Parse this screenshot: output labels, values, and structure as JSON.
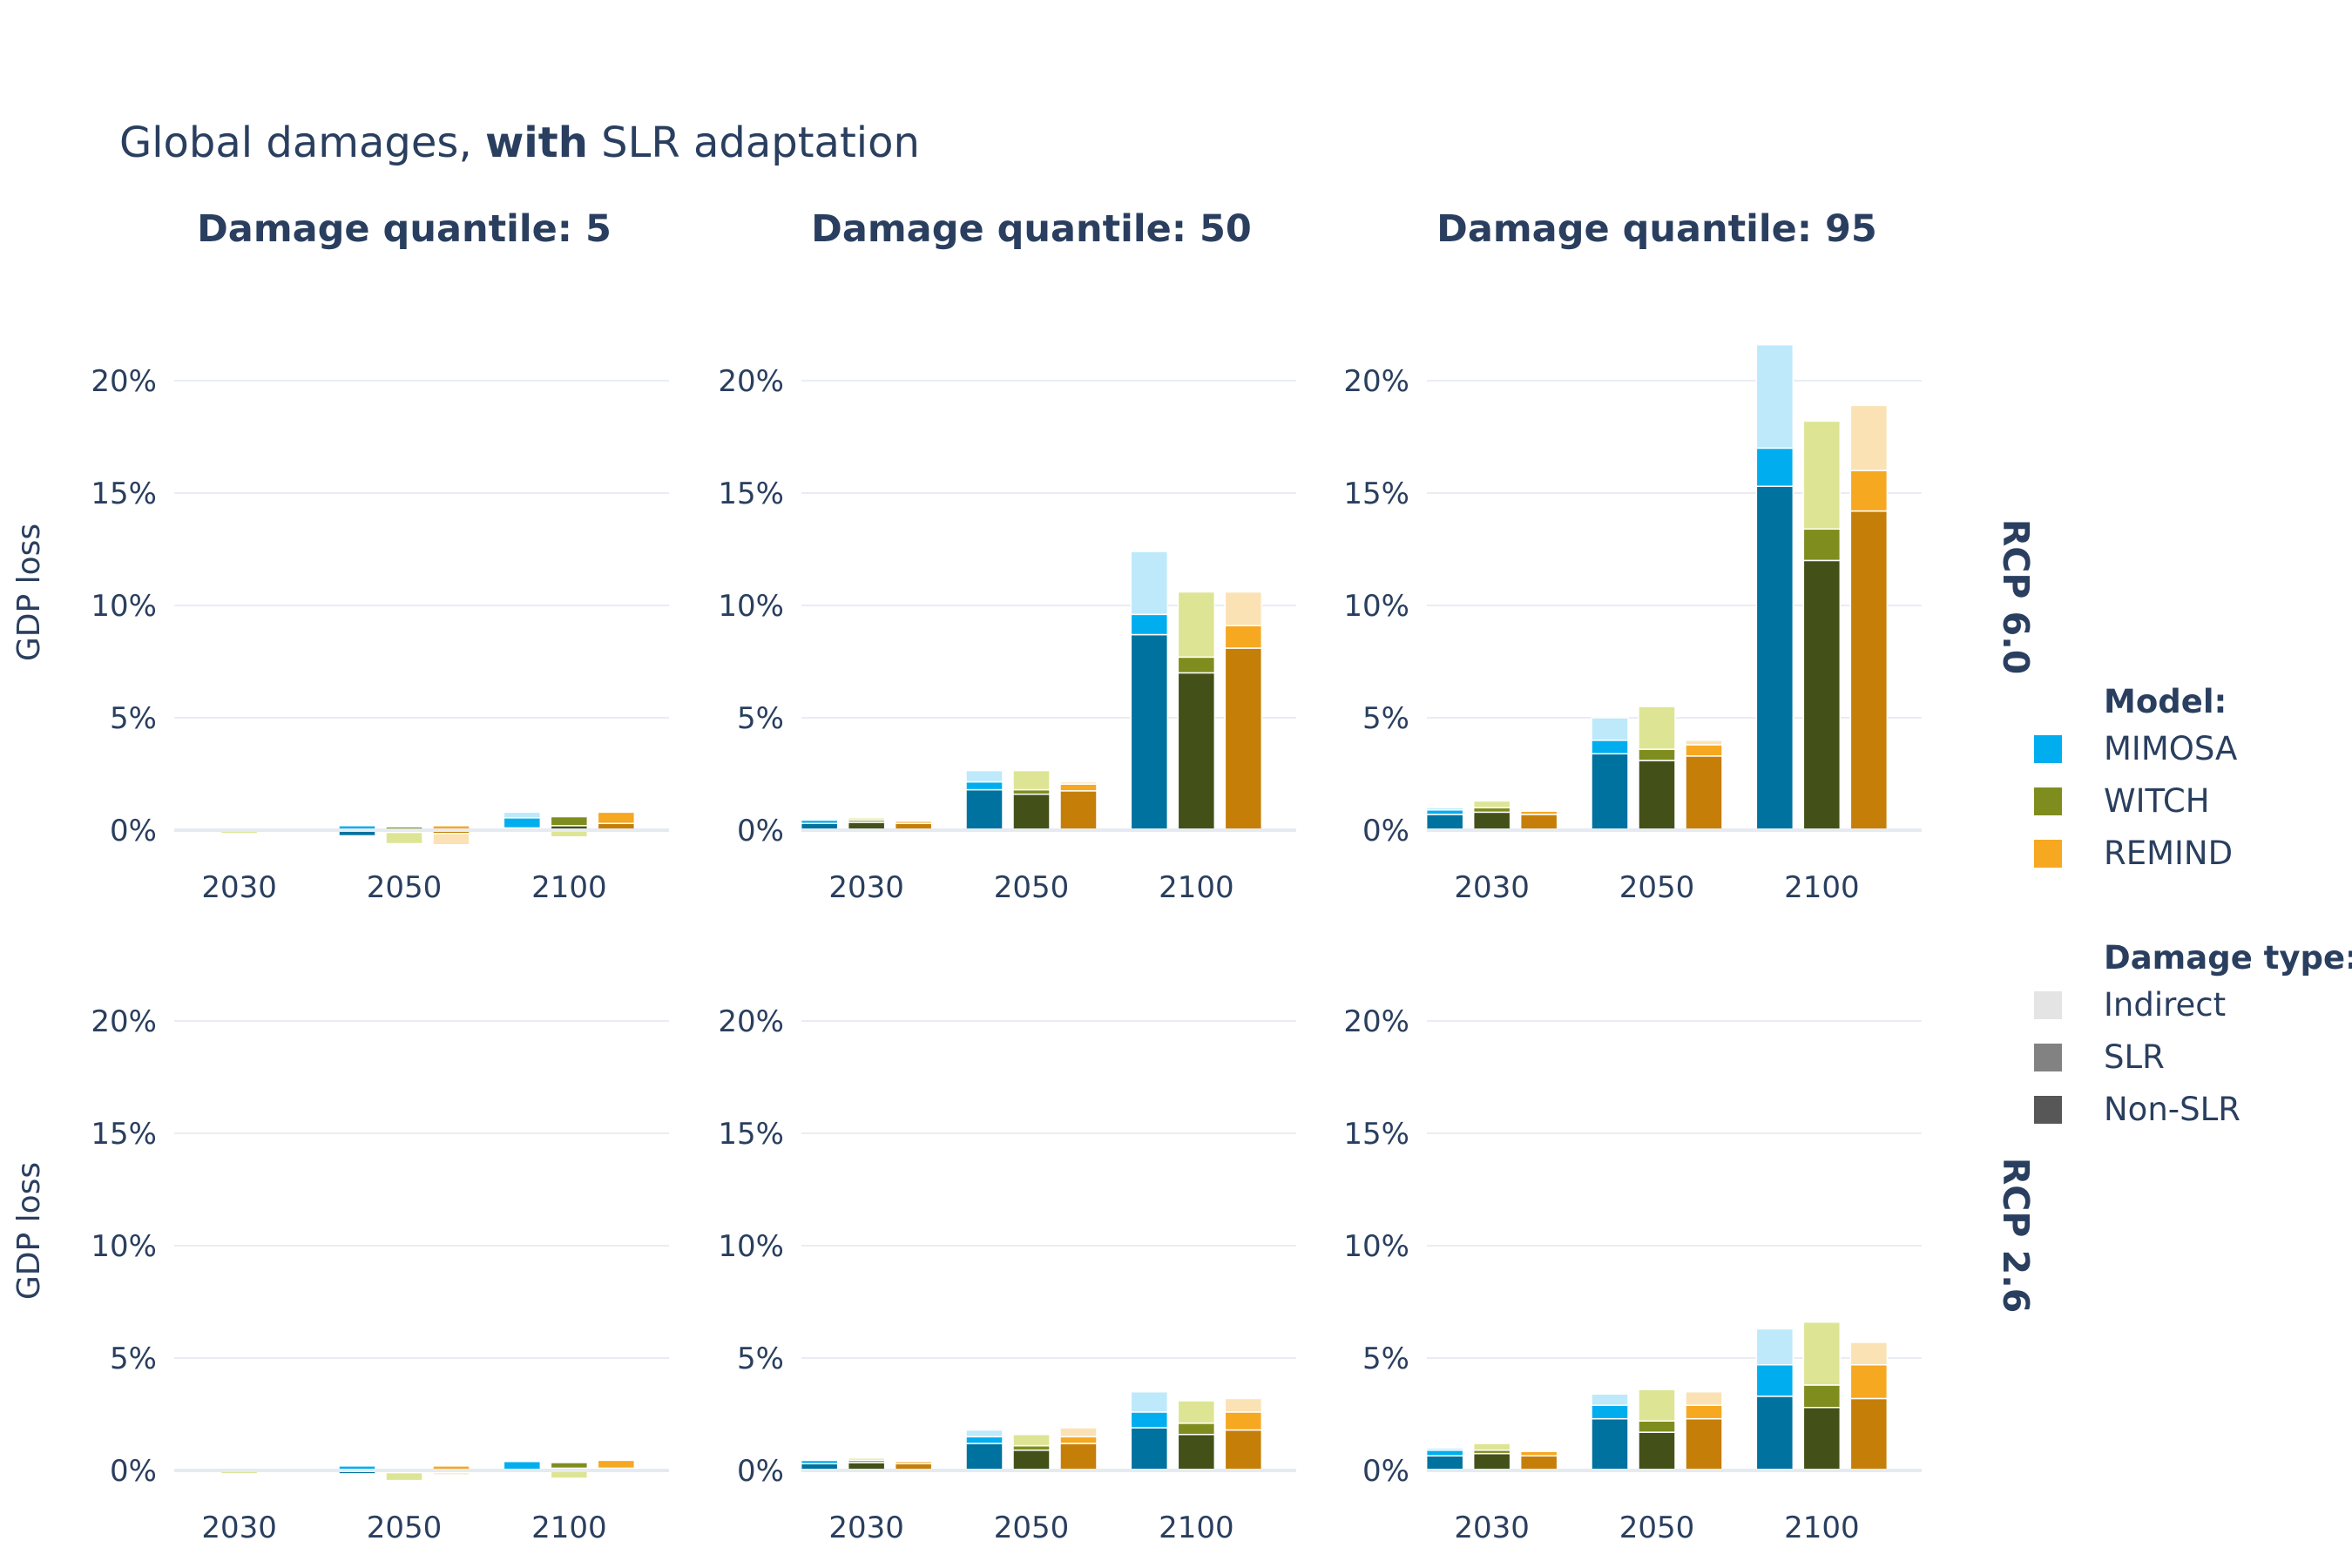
{
  "title": {
    "prefix": "Global damages, ",
    "bold": "with",
    "suffix": " SLR adaptation"
  },
  "colors": {
    "MIMOSA": {
      "indirect": "#bde9fb",
      "slr": "#00aeef",
      "nonslr": "#00729f"
    },
    "WITCH": {
      "indirect": "#dde594",
      "slr": "#7f8d1e",
      "nonslr": "#435118"
    },
    "REMIND": {
      "indirect": "#fbe2b4",
      "slr": "#f6a821",
      "nonslr": "#c57f08"
    },
    "legend_type": {
      "Indirect": "#e4e4e4",
      "SLR": "#828282",
      "Non-SLR": "#575757"
    }
  },
  "legend": {
    "model_title": "Model:",
    "models": [
      "MIMOSA",
      "WITCH",
      "REMIND"
    ],
    "type_title": "Damage type:",
    "types": [
      "Indirect",
      "SLR",
      "Non-SLR"
    ]
  },
  "chart_data": {
    "type": "bar",
    "stacking": "relative",
    "title": "Global damages, with SLR adaptation",
    "ylabel": "GDP loss",
    "ylim": [
      -1.5,
      22.5
    ],
    "yticks": [
      0,
      5,
      10,
      15,
      20
    ],
    "ytick_labels": [
      "0%",
      "5%",
      "10%",
      "15%",
      "20%"
    ],
    "categories": [
      "2030",
      "2050",
      "2100"
    ],
    "models": [
      "MIMOSA",
      "WITCH",
      "REMIND"
    ],
    "columns": [
      "Damage quantile: 5",
      "Damage quantile: 50",
      "Damage quantile: 95"
    ],
    "rows": [
      "RCP 6.0",
      "RCP 2.6"
    ],
    "units": "% of GDP",
    "panels": [
      {
        "row": "RCP 6.0",
        "column": "Damage quantile: 5",
        "values": {
          "MIMOSA": {
            "Non-SLR": [
              -0.05,
              -0.25,
              0.1
            ],
            "SLR": [
              0.02,
              0.2,
              0.45
            ],
            "Indirect": [
              0.0,
              0.0,
              0.25
            ]
          },
          "WITCH": {
            "Non-SLR": [
              -0.05,
              -0.1,
              0.2
            ],
            "SLR": [
              0.02,
              0.15,
              0.4
            ],
            "Indirect": [
              -0.1,
              -0.5,
              -0.3
            ]
          },
          "REMIND": {
            "Non-SLR": [
              -0.05,
              -0.15,
              0.3
            ],
            "SLR": [
              0.02,
              0.2,
              0.5
            ],
            "Indirect": [
              -0.05,
              -0.5,
              -0.1
            ]
          }
        }
      },
      {
        "row": "RCP 6.0",
        "column": "Damage quantile: 50",
        "values": {
          "MIMOSA": {
            "Non-SLR": [
              0.3,
              1.8,
              8.7
            ],
            "SLR": [
              0.15,
              0.35,
              0.9
            ],
            "Indirect": [
              0.05,
              0.5,
              2.8
            ]
          },
          "WITCH": {
            "Non-SLR": [
              0.35,
              1.6,
              7.0
            ],
            "SLR": [
              0.1,
              0.2,
              0.7
            ],
            "Indirect": [
              0.1,
              0.85,
              2.9
            ]
          },
          "REMIND": {
            "Non-SLR": [
              0.3,
              1.75,
              8.1
            ],
            "SLR": [
              0.1,
              0.3,
              1.0
            ],
            "Indirect": [
              0.05,
              0.1,
              1.5
            ]
          }
        }
      },
      {
        "row": "RCP 6.0",
        "column": "Damage quantile: 95",
        "values": {
          "MIMOSA": {
            "Non-SLR": [
              0.7,
              3.4,
              15.3
            ],
            "SLR": [
              0.2,
              0.6,
              1.7
            ],
            "Indirect": [
              0.1,
              1.0,
              4.6
            ]
          },
          "WITCH": {
            "Non-SLR": [
              0.8,
              3.1,
              12.0
            ],
            "SLR": [
              0.2,
              0.5,
              1.4
            ],
            "Indirect": [
              0.3,
              1.9,
              4.8
            ]
          },
          "REMIND": {
            "Non-SLR": [
              0.7,
              3.3,
              14.2
            ],
            "SLR": [
              0.15,
              0.5,
              1.8
            ],
            "Indirect": [
              0.05,
              0.2,
              2.9
            ]
          }
        }
      },
      {
        "row": "RCP 2.6",
        "column": "Damage quantile: 5",
        "values": {
          "MIMOSA": {
            "Non-SLR": [
              -0.05,
              -0.15,
              0.05
            ],
            "SLR": [
              0.02,
              0.2,
              0.35
            ],
            "Indirect": [
              0.0,
              0.0,
              0.05
            ]
          },
          "WITCH": {
            "Non-SLR": [
              -0.05,
              -0.1,
              0.1
            ],
            "SLR": [
              0.02,
              0.1,
              0.25
            ],
            "Indirect": [
              -0.1,
              -0.35,
              -0.35
            ]
          },
          "REMIND": {
            "Non-SLR": [
              -0.05,
              -0.1,
              0.1
            ],
            "SLR": [
              0.02,
              0.2,
              0.35
            ],
            "Indirect": [
              -0.05,
              -0.1,
              0.0
            ]
          }
        }
      },
      {
        "row": "RCP 2.6",
        "column": "Damage quantile: 50",
        "values": {
          "MIMOSA": {
            "Non-SLR": [
              0.3,
              1.2,
              1.9
            ],
            "SLR": [
              0.15,
              0.3,
              0.7
            ],
            "Indirect": [
              0.05,
              0.3,
              0.9
            ]
          },
          "WITCH": {
            "Non-SLR": [
              0.35,
              0.9,
              1.6
            ],
            "SLR": [
              0.1,
              0.2,
              0.5
            ],
            "Indirect": [
              0.1,
              0.5,
              1.0
            ]
          },
          "REMIND": {
            "Non-SLR": [
              0.3,
              1.2,
              1.8
            ],
            "SLR": [
              0.1,
              0.3,
              0.8
            ],
            "Indirect": [
              0.05,
              0.4,
              0.6
            ]
          }
        }
      },
      {
        "row": "RCP 2.6",
        "column": "Damage quantile: 95",
        "values": {
          "MIMOSA": {
            "Non-SLR": [
              0.65,
              2.3,
              3.3
            ],
            "SLR": [
              0.25,
              0.6,
              1.4
            ],
            "Indirect": [
              0.1,
              0.5,
              1.6
            ]
          },
          "WITCH": {
            "Non-SLR": [
              0.75,
              1.7,
              2.8
            ],
            "SLR": [
              0.15,
              0.5,
              1.0
            ],
            "Indirect": [
              0.3,
              1.4,
              2.8
            ]
          },
          "REMIND": {
            "Non-SLR": [
              0.65,
              2.3,
              3.2
            ],
            "SLR": [
              0.2,
              0.6,
              1.5
            ],
            "Indirect": [
              0.05,
              0.6,
              1.0
            ]
          }
        }
      }
    ]
  }
}
